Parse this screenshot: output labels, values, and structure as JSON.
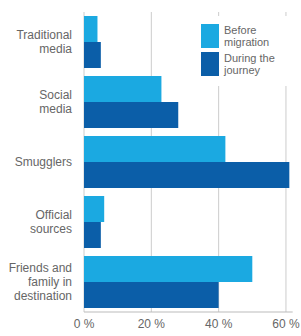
{
  "chart_data": {
    "type": "bar",
    "orientation": "horizontal",
    "categories": [
      "Traditional media",
      "Social media",
      "Smugglers",
      "Official sources",
      "Friends and family in destination"
    ],
    "series": [
      {
        "name": "Before migration",
        "color": "#1ba9e1",
        "values": [
          4,
          23,
          42,
          6,
          50
        ]
      },
      {
        "name": "During the journey",
        "color": "#0b5ea8",
        "values": [
          5,
          28,
          61,
          5,
          40
        ]
      }
    ],
    "xlim": [
      0,
      62
    ],
    "xticks": [
      {
        "value": 0,
        "label": "0 %"
      },
      {
        "value": 20,
        "label": "20 %"
      },
      {
        "value": 40,
        "label": "40 %"
      },
      {
        "value": 60,
        "label": "60 %"
      }
    ],
    "grid": true,
    "legend": "upper right"
  }
}
